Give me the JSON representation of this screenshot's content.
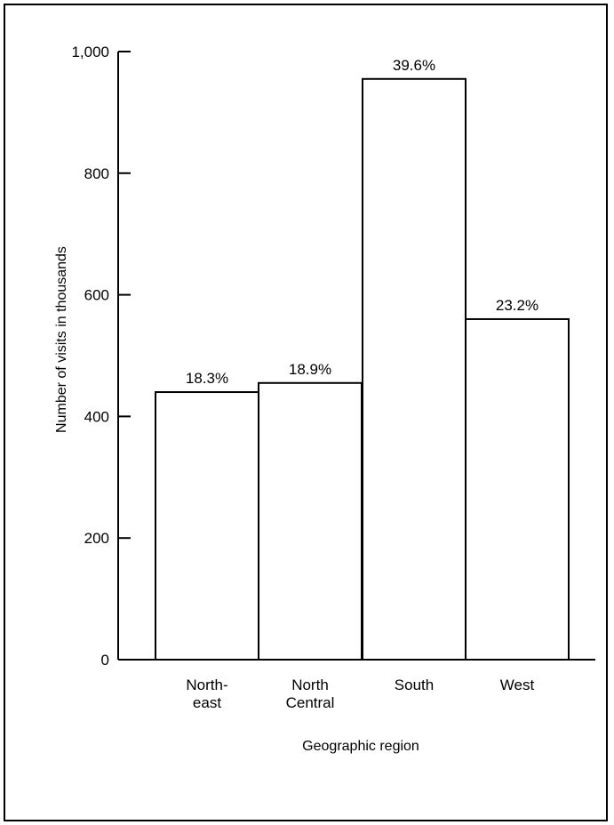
{
  "chart_data": {
    "type": "bar",
    "title": "",
    "xlabel": "Geographic region",
    "ylabel": "Number of  visits in thousands",
    "categories": [
      [
        "North-",
        "east"
      ],
      [
        "North",
        "Central"
      ],
      [
        "South"
      ],
      [
        "West"
      ]
    ],
    "values": [
      440,
      455,
      955,
      560
    ],
    "data_labels": [
      "18.3%",
      "18.9%",
      "39.6%",
      "23.2%"
    ],
    "ylim": [
      0,
      1000
    ],
    "yticks": [
      0,
      200,
      400,
      600,
      800,
      1000
    ],
    "ytick_labels": [
      "0",
      "200",
      "400",
      "600",
      "800",
      "1,000"
    ],
    "grid": false,
    "colors": {
      "bar_fill": "#ffffff",
      "bar_stroke": "#000000",
      "axis": "#000000"
    }
  }
}
